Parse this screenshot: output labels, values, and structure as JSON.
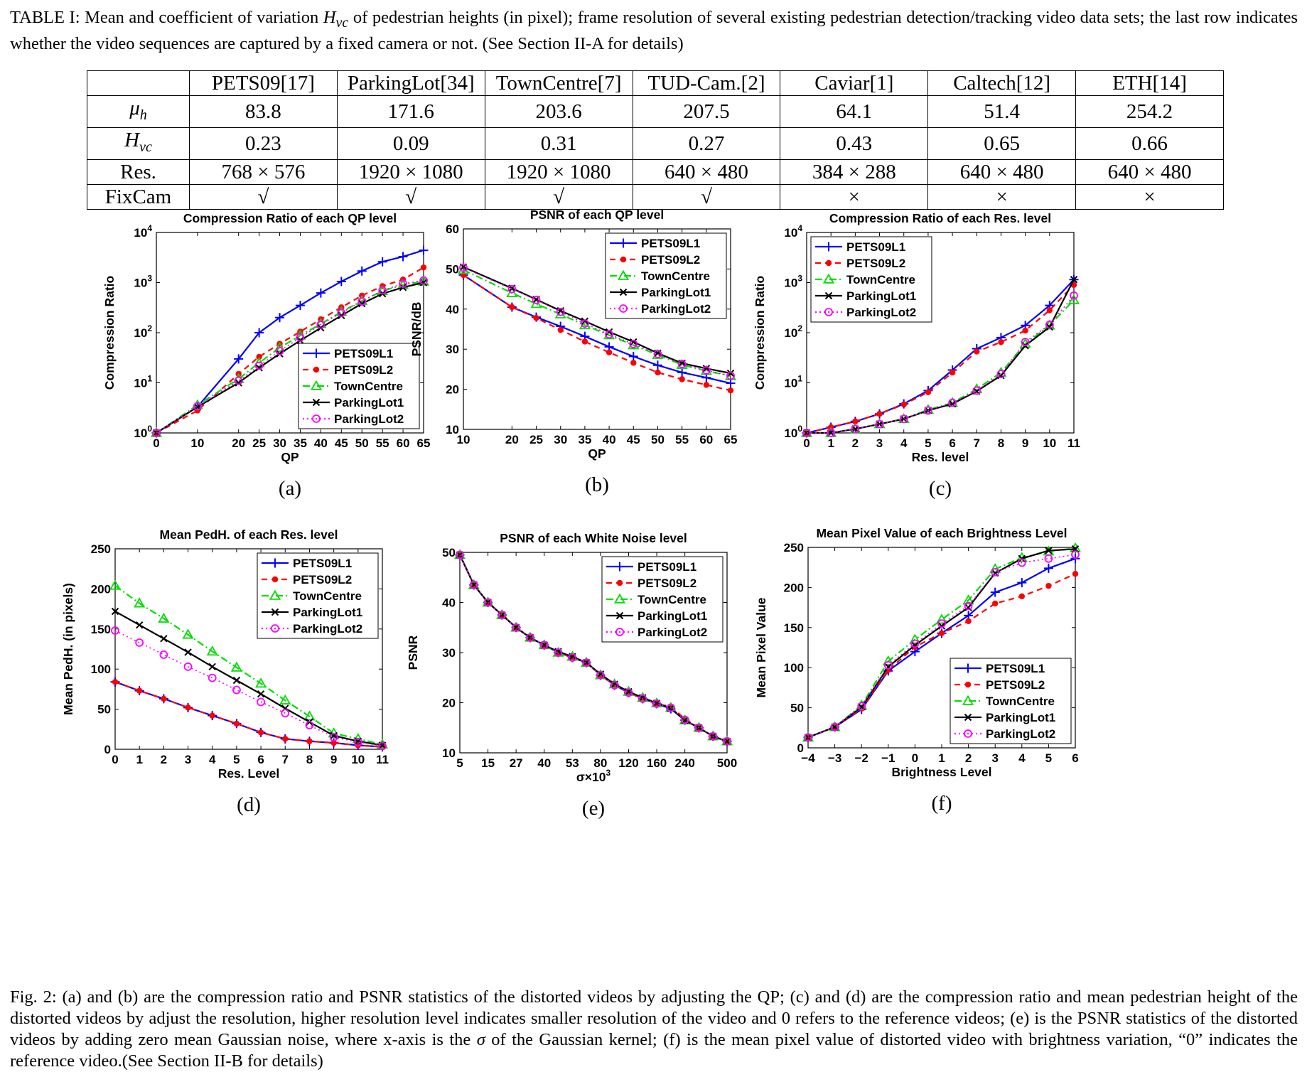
{
  "table_caption": {
    "pre": "TABLE I: Mean and coefficient of variation ",
    "sym": "H",
    "sub": "vc",
    "post": " of pedestrian heights (in pixel); frame resolution of several existing pedestrian detection/tracking video data sets; the last row indicates whether the video sequences are captured by a fixed camera or not. (See Section II-A for details)"
  },
  "table": {
    "columns": [
      "PETS09[17]",
      "ParkingLot[34]",
      "TownCentre[7]",
      "TUD-Cam.[2]",
      "Caviar[1]",
      "Caltech[12]",
      "ETH[14]"
    ],
    "rows": [
      {
        "head_sym": "μ",
        "head_sub": "h",
        "cells": [
          "83.8",
          "171.6",
          "203.6",
          "207.5",
          "64.1",
          "51.4",
          "254.2"
        ]
      },
      {
        "head_sym": "H",
        "head_sub": "vc",
        "cells": [
          "0.23",
          "0.09",
          "0.31",
          "0.27",
          "0.43",
          "0.65",
          "0.66"
        ]
      },
      {
        "head": "Res.",
        "cells": [
          "768 × 576",
          "1920 × 1080",
          "1920 × 1080",
          "640 × 480",
          "384 × 288",
          "640 × 480",
          "640 × 480"
        ]
      },
      {
        "head": "FixCam",
        "cells": [
          "√",
          "√",
          "√",
          "√",
          "×",
          "×",
          "×"
        ]
      }
    ]
  },
  "series_styles": [
    {
      "name": "PETS09L1",
      "color": "#0000ff",
      "dash": "",
      "marker": "plus"
    },
    {
      "name": "PETS09L2",
      "color": "#ff0000",
      "dash": "8,6",
      "marker": "dot"
    },
    {
      "name": "TownCentre",
      "color": "#00dd00",
      "dash": "10,4,2,4",
      "marker": "triangle"
    },
    {
      "name": "ParkingLot1",
      "color": "#000000",
      "dash": "",
      "marker": "x"
    },
    {
      "name": "ParkingLot2",
      "color": "#ff00ff",
      "dash": "2,4",
      "marker": "circle"
    }
  ],
  "chart_data": [
    {
      "id": "a",
      "sublabel": "(a)",
      "type": "line",
      "log_y": true,
      "title": "Compression Ratio of each QP level",
      "xlabel": "QP",
      "ylabel": "Compression Ratio",
      "x": [
        0,
        10,
        20,
        25,
        30,
        35,
        40,
        45,
        50,
        55,
        60,
        65
      ],
      "xticks": [
        "0",
        "10",
        "20",
        "25",
        "30",
        "35",
        "40",
        "45",
        "50",
        "55",
        "60",
        "65"
      ],
      "ylim": [
        1,
        10000
      ],
      "yticks": [
        1,
        10,
        100,
        1000,
        10000
      ],
      "ytick_exp": [
        "0",
        "1",
        "2",
        "3",
        "4"
      ],
      "legend": "bottom-right",
      "series": [
        {
          "name": "PETS09L1",
          "values": [
            1,
            3.3,
            30,
            100,
            200,
            350,
            620,
            1050,
            1700,
            2600,
            3300,
            4400
          ]
        },
        {
          "name": "PETS09L2",
          "values": [
            1,
            2.8,
            15,
            33,
            60,
            105,
            185,
            320,
            550,
            850,
            1150,
            2000
          ]
        },
        {
          "name": "TownCentre",
          "values": [
            1,
            3.6,
            12,
            25,
            50,
            88,
            150,
            260,
            430,
            680,
            900,
            1050
          ]
        },
        {
          "name": "ParkingLot1",
          "values": [
            1,
            3.3,
            10,
            20,
            38,
            70,
            125,
            220,
            380,
            600,
            800,
            1000
          ]
        },
        {
          "name": "ParkingLot2",
          "values": [
            1,
            3.4,
            11,
            22,
            43,
            80,
            145,
            250,
            420,
            700,
            950,
            1100
          ]
        }
      ]
    },
    {
      "id": "b",
      "sublabel": "(b)",
      "type": "line",
      "log_y": false,
      "title": "PSNR of each QP level",
      "xlabel": "QP",
      "ylabel": "PSNR/dB",
      "x": [
        10,
        20,
        25,
        30,
        35,
        40,
        45,
        50,
        55,
        60,
        65
      ],
      "xticks": [
        "10",
        "20",
        "25",
        "30",
        "35",
        "40",
        "45",
        "50",
        "55",
        "60",
        "65"
      ],
      "ylim": [
        10,
        60
      ],
      "yticks": [
        10,
        20,
        30,
        40,
        50,
        60
      ],
      "legend": "top-right",
      "series": [
        {
          "name": "PETS09L1",
          "values": [
            48.5,
            40.5,
            38,
            35.7,
            33.2,
            30.6,
            28.2,
            26,
            24.2,
            22.9,
            21.5
          ]
        },
        {
          "name": "PETS09L2",
          "values": [
            48.5,
            40.5,
            37.8,
            34.8,
            31.9,
            29.2,
            26.6,
            24.2,
            22.5,
            21.1,
            19.7
          ]
        },
        {
          "name": "TownCentre",
          "values": [
            49.8,
            44,
            41.3,
            38.7,
            36,
            33.5,
            31,
            28.6,
            26.1,
            24.6,
            23.3
          ]
        },
        {
          "name": "ParkingLot1",
          "values": [
            50.5,
            45.2,
            42.4,
            39.6,
            37,
            34.3,
            31.8,
            29,
            26.5,
            25.2,
            24
          ]
        },
        {
          "name": "ParkingLot2",
          "values": [
            50.3,
            45,
            42.3,
            39.3,
            36.4,
            33.7,
            31.3,
            28.8,
            26.3,
            24.7,
            23.4
          ]
        }
      ]
    },
    {
      "id": "c",
      "sublabel": "(c)",
      "type": "line",
      "log_y": true,
      "title": "Compression Ratio of each Res. level",
      "xlabel": "Res. level",
      "ylabel": "Compression Ratio",
      "x": [
        0,
        1,
        2,
        3,
        4,
        5,
        6,
        7,
        8,
        9,
        10,
        11
      ],
      "xticks": [
        "0",
        "1",
        "2",
        "3",
        "4",
        "5",
        "6",
        "7",
        "8",
        "9",
        "10",
        "11"
      ],
      "ylim": [
        1,
        10000
      ],
      "yticks": [
        1,
        10,
        100,
        1000,
        10000
      ],
      "ytick_exp": [
        "0",
        "1",
        "2",
        "3",
        "4"
      ],
      "legend": "top-left",
      "series": [
        {
          "name": "PETS09L1",
          "values": [
            1,
            1.3,
            1.7,
            2.4,
            3.8,
            7,
            18,
            48,
            80,
            140,
            350,
            1150
          ]
        },
        {
          "name": "PETS09L2",
          "values": [
            1,
            1.3,
            1.7,
            2.4,
            3.7,
            6.5,
            16,
            42,
            65,
            110,
            280,
            900
          ]
        },
        {
          "name": "TownCentre",
          "values": [
            1,
            1,
            1.2,
            1.5,
            1.9,
            2.9,
            4,
            7.5,
            16,
            60,
            140,
            450
          ]
        },
        {
          "name": "ParkingLot1",
          "values": [
            1,
            1,
            1.2,
            1.5,
            1.9,
            2.8,
            3.8,
            6.8,
            14,
            55,
            130,
            1150
          ]
        },
        {
          "name": "ParkingLot2",
          "values": [
            1,
            1,
            1.2,
            1.5,
            1.9,
            2.8,
            4,
            7,
            15,
            65,
            145,
            550
          ]
        }
      ]
    },
    {
      "id": "d",
      "sublabel": "(d)",
      "type": "line",
      "log_y": false,
      "title": "Mean PedH. of each Res. level",
      "xlabel": "Res. Level",
      "ylabel": "Mean PedH. (in pixels)",
      "x": [
        0,
        1,
        2,
        3,
        4,
        5,
        6,
        7,
        8,
        9,
        10,
        11
      ],
      "xticks": [
        "0",
        "1",
        "2",
        "3",
        "4",
        "5",
        "6",
        "7",
        "8",
        "9",
        "10",
        "11"
      ],
      "ylim": [
        0,
        250
      ],
      "yticks": [
        0,
        50,
        100,
        150,
        200,
        250
      ],
      "legend": "top-right",
      "series": [
        {
          "name": "PETS09L1",
          "values": [
            84,
            73,
            63,
            52,
            42,
            32,
            21,
            13,
            10,
            8,
            5,
            3
          ]
        },
        {
          "name": "PETS09L2",
          "values": [
            84,
            73,
            63,
            52,
            42,
            32,
            21,
            13,
            10,
            8,
            5,
            3
          ]
        },
        {
          "name": "TownCentre",
          "values": [
            204,
            182,
            163,
            143,
            122,
            102,
            82,
            61,
            41,
            20,
            13,
            6
          ]
        },
        {
          "name": "ParkingLot1",
          "values": [
            172,
            155,
            138,
            121,
            103,
            86,
            69,
            51,
            34,
            17,
            10,
            5
          ]
        },
        {
          "name": "ParkingLot2",
          "values": [
            148,
            133,
            118,
            103,
            89,
            74,
            59,
            45,
            30,
            15,
            9,
            4
          ]
        }
      ]
    },
    {
      "id": "e",
      "sublabel": "(e)",
      "type": "line",
      "log_y": false,
      "title": "PSNR of each White Noise level",
      "xlabel": "σ×10",
      "xlabel_sup": "3",
      "ylabel": "PSNR",
      "x": [
        0,
        1,
        2,
        3,
        4,
        5,
        6,
        7,
        8,
        9,
        10,
        11,
        12,
        13,
        14,
        15,
        16,
        17,
        18,
        19
      ],
      "xticks_at": [
        0,
        2,
        4,
        6,
        8,
        10,
        12,
        14,
        16,
        19
      ],
      "xticks": [
        "5",
        "15",
        "27",
        "40",
        "53",
        "80",
        "120",
        "160",
        "240",
        "500"
      ],
      "ylim": [
        10,
        50
      ],
      "yticks": [
        10,
        20,
        30,
        40,
        50
      ],
      "legend": "top-right",
      "series": [
        {
          "name": "PETS09L1",
          "values": [
            49.5,
            43.5,
            40,
            37.5,
            35,
            33,
            31.5,
            30,
            29,
            28,
            25.5,
            23.5,
            22,
            20.8,
            19.8,
            18.8,
            16.5,
            15,
            13.3,
            12.3
          ]
        },
        {
          "name": "PETS09L2",
          "values": [
            49.5,
            43.5,
            40,
            37.5,
            35,
            33,
            31.5,
            30,
            29,
            28,
            25.5,
            23.5,
            22,
            20.8,
            19.8,
            19.2,
            16.8,
            15,
            13.3,
            12.3
          ]
        },
        {
          "name": "TownCentre",
          "values": [
            49.5,
            43.5,
            40,
            37.5,
            35,
            33,
            31.5,
            30,
            29.2,
            28,
            25.5,
            23.7,
            22.2,
            21,
            19.9,
            19,
            16.5,
            15,
            13.3,
            12.3
          ]
        },
        {
          "name": "ParkingLot1",
          "values": [
            49.5,
            43.5,
            40,
            37.5,
            35,
            33,
            31.5,
            30.2,
            29.2,
            28,
            25.7,
            23.7,
            22.2,
            21,
            19.9,
            18.9,
            16.5,
            15,
            13.3,
            12.3
          ]
        },
        {
          "name": "ParkingLot2",
          "values": [
            49.5,
            43.5,
            40,
            37.5,
            35,
            33,
            31.5,
            30,
            29,
            28,
            25.5,
            23.5,
            22,
            20.8,
            19.8,
            19,
            16.6,
            15,
            13.3,
            12.3
          ]
        }
      ]
    },
    {
      "id": "f",
      "sublabel": "(f)",
      "type": "line",
      "log_y": false,
      "title": "Mean Pixel Value of each Brightness Level",
      "xlabel": "Brightness Level",
      "ylabel": "Mean Pixel Value",
      "x": [
        -4,
        -3,
        -2,
        -1,
        0,
        1,
        2,
        3,
        4,
        5,
        6
      ],
      "xticks": [
        "−4",
        "−3",
        "−2",
        "−1",
        "0",
        "1",
        "2",
        "3",
        "4",
        "5",
        "6"
      ],
      "ylim": [
        0,
        250
      ],
      "yticks": [
        0,
        50,
        100,
        150,
        200,
        250
      ],
      "legend": "bottom-right",
      "series": [
        {
          "name": "PETS09L1",
          "values": [
            13,
            26,
            48,
            96,
            120,
            143,
            165,
            194,
            206,
            224,
            236
          ]
        },
        {
          "name": "PETS09L2",
          "values": [
            13,
            26,
            49,
            97,
            126,
            143,
            158,
            180,
            189,
            202,
            217
          ]
        },
        {
          "name": "TownCentre",
          "values": [
            13,
            26,
            53,
            108,
            135,
            160,
            184,
            223,
            237,
            245,
            249
          ]
        },
        {
          "name": "ParkingLot1",
          "values": [
            13,
            26,
            51,
            101,
            128,
            152,
            175,
            218,
            236,
            246,
            248
          ]
        },
        {
          "name": "ParkingLot2",
          "values": [
            13,
            26,
            52,
            103,
            130,
            155,
            177,
            219,
            231,
            236,
            241
          ]
        }
      ]
    }
  ],
  "fig_caption": {
    "pre": "Fig. 2: (a) and (b) are the compression ratio and PSNR statistics of the distorted videos by adjusting the QP; (c) and (d) are the compression ratio and mean pedestrian height of the distorted videos by adjust the resolution, higher resolution level indicates smaller resolution of the video and 0 refers to the reference videos; (e) is the PSNR statistics of the distorted videos by adding zero mean Gaussian noise, where x-axis is the ",
    "sym": "σ",
    "post": " of the Gaussian kernel; (f) is the mean pixel value of distorted video with brightness variation, “0” indicates the reference video.(See Section II-B for details)"
  }
}
